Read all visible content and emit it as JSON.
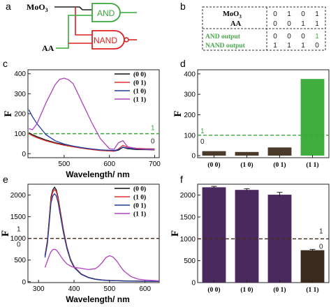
{
  "panel_labels": {
    "a": "a",
    "b": "b",
    "c": "c",
    "d": "d",
    "e": "e",
    "f": "f"
  },
  "panel_a": {
    "inputs": [
      "MoO",
      "AA"
    ],
    "input_subscript": "3",
    "gates": [
      "AND",
      "NAND"
    ],
    "colors": {
      "and": "#3aa63a",
      "nand": "#e02020",
      "wire": "#222222"
    }
  },
  "panel_b": {
    "rows": [
      {
        "label": "MoO",
        "sub": "3",
        "values": [
          "0",
          "1",
          "0",
          "1"
        ]
      },
      {
        "label": "AA",
        "sub": "",
        "values": [
          "0",
          "0",
          "1",
          "1"
        ]
      },
      {
        "label": "AND output",
        "sub": "",
        "values": [
          "0",
          "0",
          "0",
          "1"
        ]
      },
      {
        "label": "NAND output",
        "sub": "",
        "values": [
          "1",
          "1",
          "1",
          "0"
        ]
      }
    ],
    "highlight_color": "#4aa84a"
  },
  "chart_data": [
    {
      "panel": "c",
      "type": "line",
      "xlabel": "Wavelength/ nm",
      "ylabel": "F",
      "xlim": [
        420,
        710
      ],
      "ylim": [
        -20,
        420
      ],
      "xticks": [
        500,
        600,
        700
      ],
      "yticks": [
        0,
        100,
        200,
        300,
        400
      ],
      "threshold": {
        "value": 100,
        "color": "#3aa63a",
        "labels": [
          "1",
          "0"
        ]
      },
      "legend_position": "top-right",
      "series": [
        {
          "name": "(0 0)",
          "color": "#111111",
          "x": [
            422,
            430,
            440,
            460,
            480,
            500,
            520,
            540,
            560,
            580,
            600,
            610,
            620,
            630,
            640,
            660,
            680,
            700
          ],
          "y": [
            105,
            95,
            85,
            68,
            55,
            45,
            36,
            28,
            22,
            17,
            14,
            13,
            18,
            32,
            25,
            21,
            20,
            19
          ]
        },
        {
          "name": "(0 1)",
          "color": "#e03030",
          "x": [
            422,
            430,
            440,
            460,
            480,
            500,
            520,
            540,
            560,
            580,
            600,
            610,
            620,
            630,
            640,
            660,
            680,
            700
          ],
          "y": [
            100,
            90,
            80,
            64,
            52,
            42,
            34,
            27,
            21,
            16,
            14,
            13,
            24,
            42,
            32,
            27,
            25,
            24
          ]
        },
        {
          "name": "(1 0)",
          "color": "#1c3c9c",
          "x": [
            422,
            430,
            440,
            460,
            480,
            500,
            520,
            540,
            560,
            580,
            600,
            610,
            620,
            630,
            640,
            660,
            680,
            700
          ],
          "y": [
            220,
            185,
            150,
            95,
            65,
            48,
            38,
            30,
            24,
            19,
            17,
            16,
            20,
            33,
            27,
            24,
            23,
            22
          ]
        },
        {
          "name": "(1 1)",
          "color": "#b040c0",
          "x": [
            422,
            430,
            440,
            460,
            480,
            490,
            500,
            510,
            520,
            540,
            560,
            580,
            600,
            610,
            620,
            630,
            640,
            660,
            680,
            700
          ],
          "y": [
            125,
            120,
            150,
            255,
            345,
            372,
            378,
            370,
            350,
            255,
            160,
            75,
            25,
            22,
            55,
            65,
            35,
            25,
            22,
            21
          ]
        }
      ]
    },
    {
      "panel": "d",
      "type": "bar",
      "xlabel": "",
      "ylabel": "F",
      "ylim": [
        -10,
        420
      ],
      "yticks": [
        0,
        100,
        200,
        300,
        400
      ],
      "categories": [
        "(0 0)",
        "(1 0)",
        "(0 1)",
        "(1 1)"
      ],
      "values": [
        22,
        18,
        40,
        375
      ],
      "colors": [
        "#4a3a2a",
        "#4a3a2a",
        "#4a3a2a",
        "#3fae3f"
      ],
      "threshold": {
        "value": 100,
        "color": "#3aa63a",
        "labels": [
          "1",
          "0"
        ]
      }
    },
    {
      "panel": "e",
      "type": "line",
      "xlabel": "Wavelength/ nm",
      "ylabel": "F",
      "xlim": [
        270,
        640
      ],
      "ylim": [
        -20,
        2250
      ],
      "xticks": [
        300,
        400,
        500,
        600
      ],
      "yticks": [
        0,
        500,
        1000,
        1500,
        2000
      ],
      "threshold": {
        "value": 1000,
        "color": "#4a2a1a",
        "labels": [
          "1",
          "0"
        ]
      },
      "legend_position": "top-right",
      "series": [
        {
          "name": "(0 0)",
          "color": "#111111",
          "x": [
            318,
            325,
            330,
            335,
            340,
            345,
            350,
            355,
            360,
            370,
            380,
            390,
            400,
            420,
            440,
            460,
            480,
            500,
            520,
            540,
            560,
            580,
            600,
            620,
            640
          ],
          "y": [
            600,
            950,
            1450,
            1950,
            2120,
            2180,
            2120,
            1950,
            1700,
            1200,
            800,
            520,
            350,
            180,
            100,
            60,
            40,
            30,
            25,
            20,
            18,
            15,
            12,
            10,
            10
          ]
        },
        {
          "name": "(1 0)",
          "color": "#e03030",
          "x": [
            318,
            325,
            330,
            335,
            340,
            345,
            350,
            355,
            360,
            370,
            380,
            390,
            400,
            420,
            440,
            460,
            480,
            500,
            520,
            540,
            560,
            580,
            600,
            620,
            640
          ],
          "y": [
            590,
            930,
            1420,
            1900,
            2070,
            2130,
            2080,
            1920,
            1680,
            1180,
            790,
            510,
            345,
            175,
            98,
            58,
            38,
            28,
            23,
            19,
            17,
            14,
            11,
            10,
            10
          ]
        },
        {
          "name": "(0 1)",
          "color": "#1c3c9c",
          "x": [
            318,
            325,
            330,
            335,
            340,
            345,
            350,
            355,
            360,
            370,
            380,
            390,
            400,
            420,
            440,
            460,
            480,
            500,
            520,
            540,
            560,
            580,
            600,
            620,
            640
          ],
          "y": [
            560,
            880,
            1350,
            1820,
            1980,
            2030,
            1980,
            1830,
            1600,
            1130,
            760,
            490,
            330,
            170,
            95,
            56,
            37,
            27,
            22,
            18,
            16,
            13,
            11,
            10,
            10
          ]
        },
        {
          "name": "(1 1)",
          "color": "#b040c0",
          "x": [
            318,
            325,
            330,
            335,
            340,
            345,
            350,
            355,
            360,
            370,
            380,
            390,
            400,
            410,
            420,
            440,
            460,
            470,
            480,
            490,
            500,
            510,
            520,
            530,
            540,
            560,
            580,
            600,
            620,
            640
          ],
          "y": [
            330,
            480,
            600,
            690,
            740,
            750,
            730,
            680,
            620,
            500,
            410,
            360,
            330,
            320,
            310,
            280,
            300,
            360,
            450,
            560,
            600,
            570,
            480,
            360,
            250,
            120,
            60,
            40,
            30,
            20
          ]
        }
      ]
    },
    {
      "panel": "f",
      "type": "bar",
      "xlabel": "",
      "ylabel": "F",
      "ylim": [
        0,
        2250
      ],
      "yticks": [
        0,
        500,
        1000,
        1500,
        2000
      ],
      "categories": [
        "(0 0)",
        "(1 0)",
        "(0 1)",
        "(1 1)"
      ],
      "values": [
        2180,
        2120,
        2010,
        740
      ],
      "errors": [
        20,
        25,
        55,
        20
      ],
      "colors": [
        "#4a2a5e",
        "#4a2a5e",
        "#4a2a5e",
        "#3a2a1e"
      ],
      "threshold": {
        "value": 1000,
        "color": "#4a2a1a",
        "labels": [
          "1",
          "0"
        ]
      }
    }
  ]
}
